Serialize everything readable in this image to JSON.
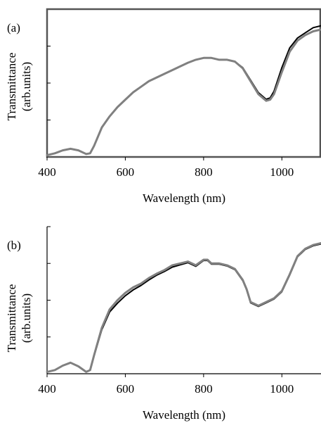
{
  "chart_data": [
    {
      "type": "line",
      "panel_label": "(a)",
      "xlabel": "Wavelength (nm)",
      "ylabel_line1": "Transmittance",
      "ylabel_line2": "(arb.units)",
      "xlim": [
        400,
        1100
      ],
      "ylim": [
        0,
        4
      ],
      "xticks": [
        400,
        600,
        800,
        1000
      ],
      "yticks": [
        1,
        2,
        3
      ],
      "show_ytick_labels": false,
      "frame": "full-box",
      "grid": false,
      "colors": {
        "front": "#808080",
        "back": "#000000"
      },
      "series": [
        {
          "x": [
            400,
            420,
            440,
            460,
            480,
            500,
            510,
            520,
            540,
            560,
            580,
            600,
            620,
            640,
            660,
            680,
            700,
            720,
            740,
            760,
            780,
            800,
            820,
            840,
            860,
            880,
            900,
            920,
            940,
            960,
            970,
            980,
            1000,
            1020,
            1040,
            1060,
            1080,
            1100
          ],
          "y": [
            0.05,
            0.1,
            0.18,
            0.22,
            0.18,
            0.08,
            0.1,
            0.3,
            0.8,
            1.1,
            1.35,
            1.55,
            1.75,
            1.9,
            2.05,
            2.15,
            2.25,
            2.35,
            2.45,
            2.55,
            2.63,
            2.68,
            2.68,
            2.63,
            2.63,
            2.58,
            2.4,
            2.05,
            1.7,
            1.52,
            1.55,
            1.7,
            2.3,
            2.85,
            3.15,
            3.3,
            3.4,
            3.45
          ]
        },
        {
          "x": [
            400,
            420,
            440,
            460,
            480,
            500,
            510,
            520,
            540,
            560,
            580,
            600,
            620,
            640,
            660,
            680,
            700,
            720,
            740,
            760,
            780,
            800,
            820,
            840,
            860,
            880,
            900,
            920,
            940,
            960,
            970,
            980,
            1000,
            1020,
            1040,
            1060,
            1080,
            1100
          ],
          "y": [
            0.05,
            0.1,
            0.18,
            0.22,
            0.18,
            0.08,
            0.1,
            0.3,
            0.8,
            1.1,
            1.35,
            1.55,
            1.75,
            1.9,
            2.05,
            2.15,
            2.25,
            2.35,
            2.45,
            2.55,
            2.63,
            2.68,
            2.68,
            2.63,
            2.63,
            2.58,
            2.42,
            2.08,
            1.74,
            1.56,
            1.6,
            1.78,
            2.42,
            2.95,
            3.22,
            3.36,
            3.5,
            3.55
          ]
        }
      ]
    },
    {
      "type": "line",
      "panel_label": "(b)",
      "xlabel": "Wavelength  (nm)",
      "ylabel_line1": "Transmittance",
      "ylabel_line2": "(arb.units)",
      "xlim": [
        400,
        1100
      ],
      "ylim": [
        0,
        4
      ],
      "xticks": [
        400,
        600,
        800,
        1000
      ],
      "yticks": [
        1,
        2,
        3
      ],
      "show_ytick_labels": false,
      "frame": "left-bottom",
      "grid": false,
      "colors": {
        "front": "#808080",
        "back": "#000000"
      },
      "series": [
        {
          "x": [
            400,
            420,
            440,
            460,
            480,
            500,
            510,
            520,
            540,
            560,
            580,
            600,
            620,
            640,
            660,
            680,
            700,
            720,
            740,
            760,
            780,
            800,
            810,
            820,
            840,
            860,
            880,
            900,
            910,
            920,
            940,
            960,
            980,
            1000,
            1020,
            1040,
            1060,
            1080,
            1100
          ],
          "y": [
            0.05,
            0.1,
            0.22,
            0.3,
            0.2,
            0.05,
            0.1,
            0.5,
            1.25,
            1.75,
            2.0,
            2.2,
            2.35,
            2.45,
            2.6,
            2.72,
            2.82,
            2.95,
            3.0,
            3.05,
            2.95,
            3.1,
            3.1,
            3.0,
            3.0,
            2.95,
            2.85,
            2.55,
            2.3,
            1.95,
            1.85,
            1.95,
            2.05,
            2.25,
            2.7,
            3.2,
            3.4,
            3.5,
            3.55
          ]
        },
        {
          "x": [
            400,
            420,
            440,
            460,
            480,
            500,
            510,
            520,
            540,
            560,
            580,
            600,
            620,
            640,
            660,
            680,
            700,
            720,
            740,
            760,
            780,
            800,
            810,
            820,
            840,
            860,
            880,
            900,
            910,
            920,
            940,
            960,
            980,
            1000,
            1020,
            1040,
            1060,
            1080,
            1100
          ],
          "y": [
            0.05,
            0.1,
            0.22,
            0.3,
            0.2,
            0.05,
            0.1,
            0.48,
            1.2,
            1.68,
            1.92,
            2.12,
            2.28,
            2.4,
            2.55,
            2.68,
            2.78,
            2.9,
            2.96,
            3.02,
            2.92,
            3.08,
            3.08,
            2.98,
            2.98,
            2.93,
            2.83,
            2.53,
            2.28,
            1.93,
            1.83,
            1.93,
            2.03,
            2.23,
            2.68,
            3.18,
            3.38,
            3.48,
            3.53
          ]
        }
      ]
    }
  ]
}
